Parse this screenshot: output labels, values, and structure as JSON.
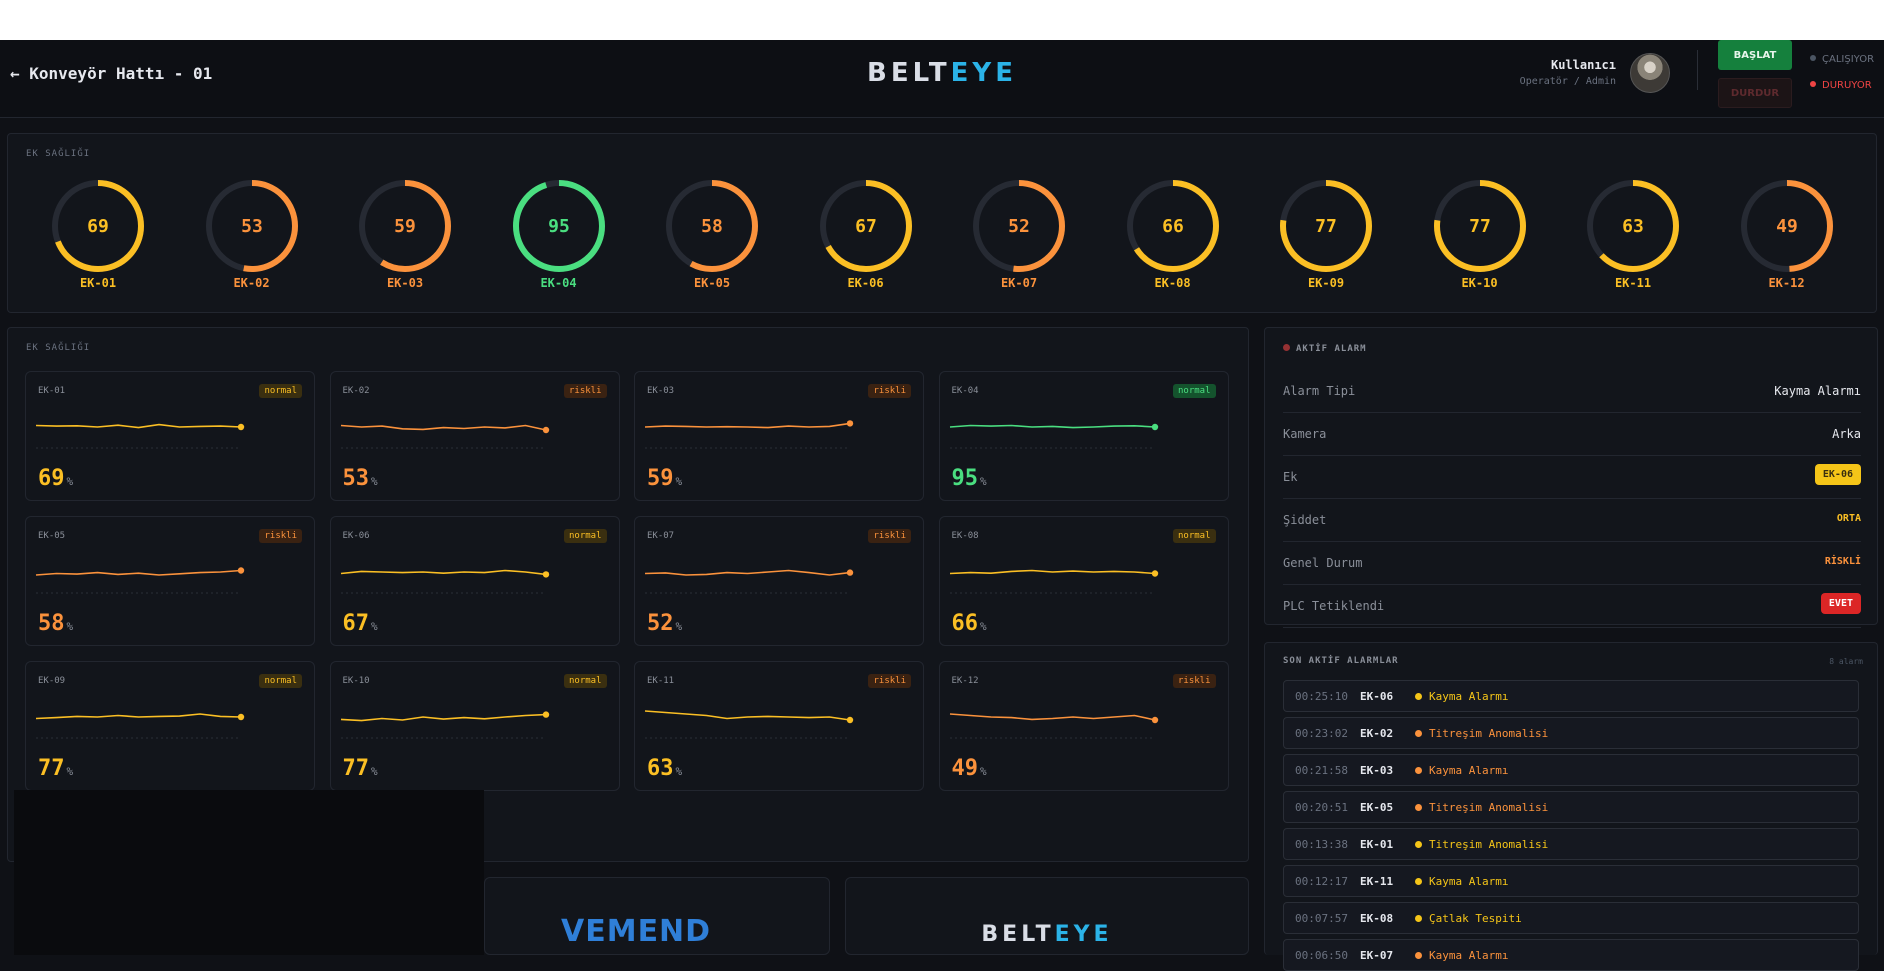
{
  "header": {
    "back_label": "← Konveyör Hattı - 01",
    "brand_a": "BELT",
    "brand_b": "EYE",
    "user_name": "Kullanıcı",
    "user_role": "Operatör / Admin",
    "start_label": "BAŞLAT",
    "stop_label": "DURDUR",
    "status_running": "ÇALIŞIYOR",
    "status_stopped": "DURUYOR"
  },
  "gauges": {
    "title": "EK SAĞLIĞI",
    "items": [
      {
        "id": "EK-01",
        "value": 69
      },
      {
        "id": "EK-02",
        "value": 53
      },
      {
        "id": "EK-03",
        "value": 59
      },
      {
        "id": "EK-04",
        "value": 95
      },
      {
        "id": "EK-05",
        "value": 58
      },
      {
        "id": "EK-06",
        "value": 67
      },
      {
        "id": "EK-07",
        "value": 52
      },
      {
        "id": "EK-08",
        "value": 66
      },
      {
        "id": "EK-09",
        "value": 77
      },
      {
        "id": "EK-10",
        "value": 77
      },
      {
        "id": "EK-11",
        "value": 63
      },
      {
        "id": "EK-12",
        "value": 49
      }
    ]
  },
  "cards": {
    "title": "EK SAĞLIĞI",
    "items": [
      {
        "id": "EK-01",
        "value": 69,
        "pct": "%",
        "status": "normal",
        "trend": [
          0.45,
          0.47,
          0.46,
          0.5,
          0.44,
          0.52,
          0.42,
          0.5,
          0.48,
          0.47,
          0.5
        ]
      },
      {
        "id": "EK-02",
        "value": 53,
        "pct": "%",
        "status": "riskli",
        "trend": [
          0.45,
          0.5,
          0.47,
          0.56,
          0.58,
          0.52,
          0.55,
          0.5,
          0.53,
          0.45,
          0.6
        ]
      },
      {
        "id": "EK-03",
        "value": 59,
        "pct": "%",
        "status": "riskli",
        "trend": [
          0.5,
          0.47,
          0.48,
          0.5,
          0.49,
          0.5,
          0.52,
          0.47,
          0.5,
          0.48,
          0.38
        ]
      },
      {
        "id": "EK-04",
        "value": 95,
        "pct": "%",
        "status": "normal",
        "trend": [
          0.5,
          0.45,
          0.47,
          0.45,
          0.5,
          0.48,
          0.52,
          0.5,
          0.47,
          0.46,
          0.5
        ]
      },
      {
        "id": "EK-05",
        "value": 58,
        "pct": "%",
        "status": "riskli",
        "trend": [
          0.6,
          0.55,
          0.57,
          0.52,
          0.58,
          0.54,
          0.6,
          0.56,
          0.52,
          0.5,
          0.45
        ]
      },
      {
        "id": "EK-06",
        "value": 67,
        "pct": "%",
        "status": "normal",
        "trend": [
          0.55,
          0.48,
          0.5,
          0.52,
          0.5,
          0.54,
          0.5,
          0.52,
          0.45,
          0.5,
          0.58
        ]
      },
      {
        "id": "EK-07",
        "value": 52,
        "pct": "%",
        "status": "riskli",
        "trend": [
          0.55,
          0.53,
          0.6,
          0.58,
          0.52,
          0.55,
          0.5,
          0.45,
          0.52,
          0.6,
          0.52
        ]
      },
      {
        "id": "EK-08",
        "value": 66,
        "pct": "%",
        "status": "normal",
        "trend": [
          0.55,
          0.52,
          0.54,
          0.48,
          0.45,
          0.5,
          0.47,
          0.5,
          0.48,
          0.5,
          0.55
        ]
      },
      {
        "id": "EK-09",
        "value": 77,
        "pct": "%",
        "status": "normal",
        "trend": [
          0.55,
          0.52,
          0.48,
          0.5,
          0.45,
          0.5,
          0.48,
          0.47,
          0.4,
          0.48,
          0.5
        ]
      },
      {
        "id": "EK-10",
        "value": 77,
        "pct": "%",
        "status": "normal",
        "trend": [
          0.58,
          0.62,
          0.55,
          0.6,
          0.5,
          0.57,
          0.52,
          0.56,
          0.5,
          0.45,
          0.42
        ]
      },
      {
        "id": "EK-11",
        "value": 63,
        "pct": "%",
        "status": "riskli",
        "trend": [
          0.3,
          0.35,
          0.4,
          0.45,
          0.55,
          0.5,
          0.48,
          0.5,
          0.52,
          0.5,
          0.6
        ]
      },
      {
        "id": "EK-12",
        "value": 49,
        "pct": "%",
        "status": "riskli",
        "trend": [
          0.4,
          0.45,
          0.5,
          0.52,
          0.58,
          0.55,
          0.5,
          0.55,
          0.5,
          0.45,
          0.6
        ]
      }
    ]
  },
  "active_alarm": {
    "title": "AKTİF ALARM",
    "rows": [
      {
        "key": "Alarm Tipi",
        "value": "Kayma Alarmı"
      },
      {
        "key": "Kamera",
        "value": "Arka"
      },
      {
        "key": "Ek",
        "value": "EK-06"
      },
      {
        "key": "Şiddet",
        "value": "ORTA"
      },
      {
        "key": "Genel Durum",
        "value": "RİSKLİ"
      },
      {
        "key": "PLC Tetiklendi",
        "value": "EVET"
      }
    ]
  },
  "recent_alarms": {
    "title": "SON AKTİF ALARMLAR",
    "count": "8 alarm",
    "items": [
      {
        "time": "00:25:10",
        "ek": "EK-06",
        "type": "Kayma Alarmı",
        "color": "#f5c518"
      },
      {
        "time": "00:23:02",
        "ek": "EK-02",
        "type": "Titreşim Anomalisi",
        "color": "#fb923c"
      },
      {
        "time": "00:21:58",
        "ek": "EK-03",
        "type": "Kayma Alarmı",
        "color": "#fb923c"
      },
      {
        "time": "00:20:51",
        "ek": "EK-05",
        "type": "Titreşim Anomalisi",
        "color": "#fb923c"
      },
      {
        "time": "00:13:38",
        "ek": "EK-01",
        "type": "Titreşim Anomalisi",
        "color": "#f5c518"
      },
      {
        "time": "00:12:17",
        "ek": "EK-11",
        "type": "Kayma Alarmı",
        "color": "#f5c518"
      },
      {
        "time": "00:07:57",
        "ek": "EK-08",
        "type": "Çatlak Tespiti",
        "color": "#f5c518"
      },
      {
        "time": "00:06:50",
        "ek": "EK-07",
        "type": "Kayma Alarmı",
        "color": "#fb923c"
      }
    ]
  },
  "footer": {
    "vemend_logo": "VEMEND",
    "brand_a": "BELT",
    "brand_b": "EYE"
  },
  "colors": {
    "green": "#4ade80",
    "yellow": "#fbbf24",
    "orange": "#fb923c",
    "red": "#dc2626"
  }
}
